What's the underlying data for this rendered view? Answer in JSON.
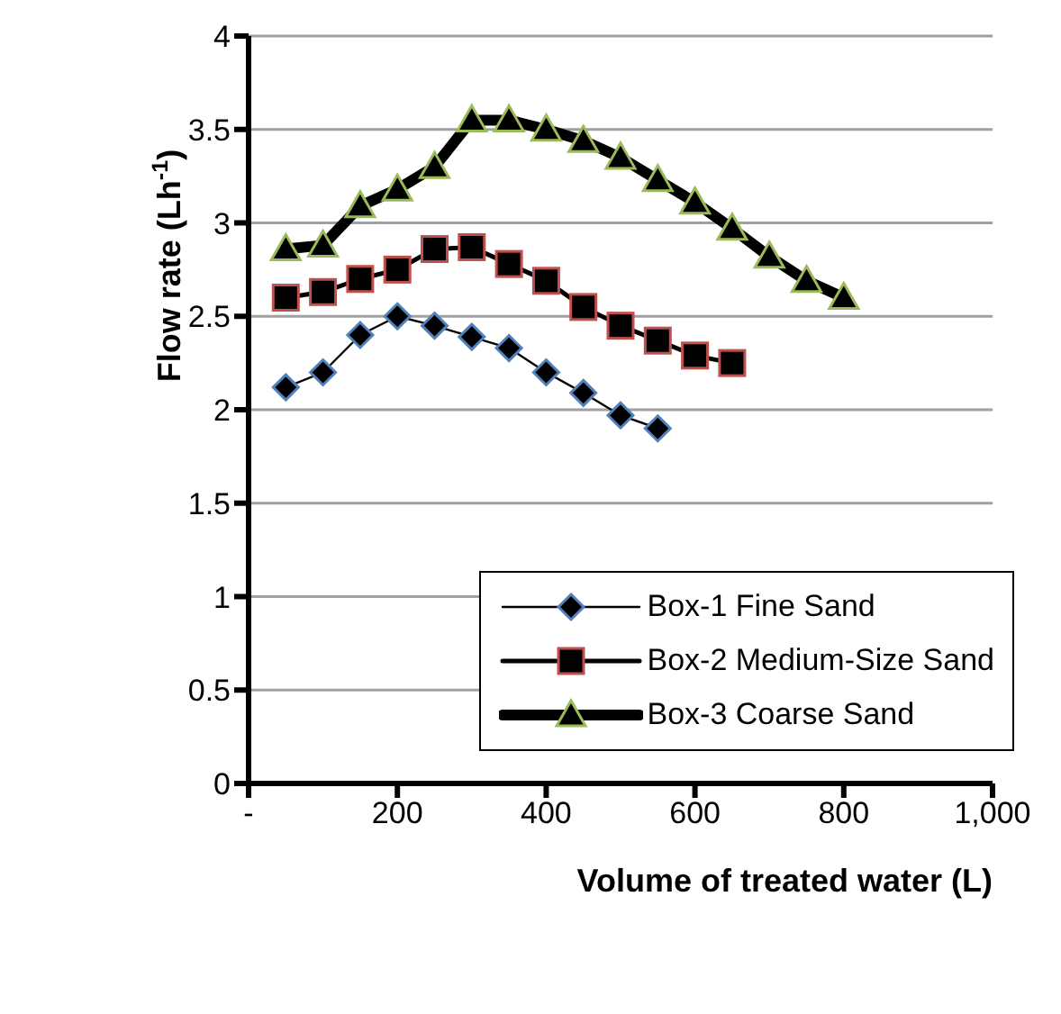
{
  "chart_data": {
    "type": "line",
    "xlabel": "Volume of treated water (L)",
    "ylabel": "Flow rate (Lh$^{-1}$)",
    "xlim": [
      0,
      1000
    ],
    "xticks": [
      {
        "value": 0,
        "label": "-"
      },
      200,
      400,
      600,
      800,
      {
        "value": 1000,
        "label": "1,000"
      }
    ],
    "ylim": [
      0,
      4
    ],
    "yticks": [
      0,
      0.5,
      1,
      1.5,
      2,
      2.5,
      3,
      3.5,
      4
    ],
    "grid": "y",
    "legend": "bottom right",
    "line_style": "solid",
    "series": [
      {
        "name": "Box-1 Fine Sand",
        "color": "#4f81bd",
        "marker": "diamond",
        "x": [
          50,
          100,
          150,
          200,
          250,
          300,
          350,
          400,
          450,
          500,
          550
        ],
        "values": [
          2.12,
          2.2,
          2.4,
          2.5,
          2.45,
          2.39,
          2.33,
          2.2,
          2.09,
          1.97,
          1.9
        ]
      },
      {
        "name": "Box-2 Medium-Size Sand",
        "color": "#c0504d",
        "marker": "square",
        "x": [
          50,
          100,
          150,
          200,
          250,
          300,
          350,
          400,
          450,
          500,
          550,
          600,
          650
        ],
        "values": [
          2.6,
          2.63,
          2.7,
          2.75,
          2.86,
          2.87,
          2.78,
          2.69,
          2.55,
          2.45,
          2.37,
          2.29,
          2.25
        ]
      },
      {
        "name": "Box-3 Coarse Sand",
        "color": "#9bbb59",
        "marker": "triangle",
        "x": [
          50,
          100,
          150,
          200,
          250,
          300,
          350,
          400,
          450,
          500,
          550,
          600,
          650,
          700,
          750,
          800
        ],
        "values": [
          2.86,
          2.88,
          3.09,
          3.18,
          3.3,
          3.55,
          3.55,
          3.5,
          3.44,
          3.35,
          3.23,
          3.11,
          2.97,
          2.82,
          2.69,
          2.6
        ]
      }
    ]
  }
}
